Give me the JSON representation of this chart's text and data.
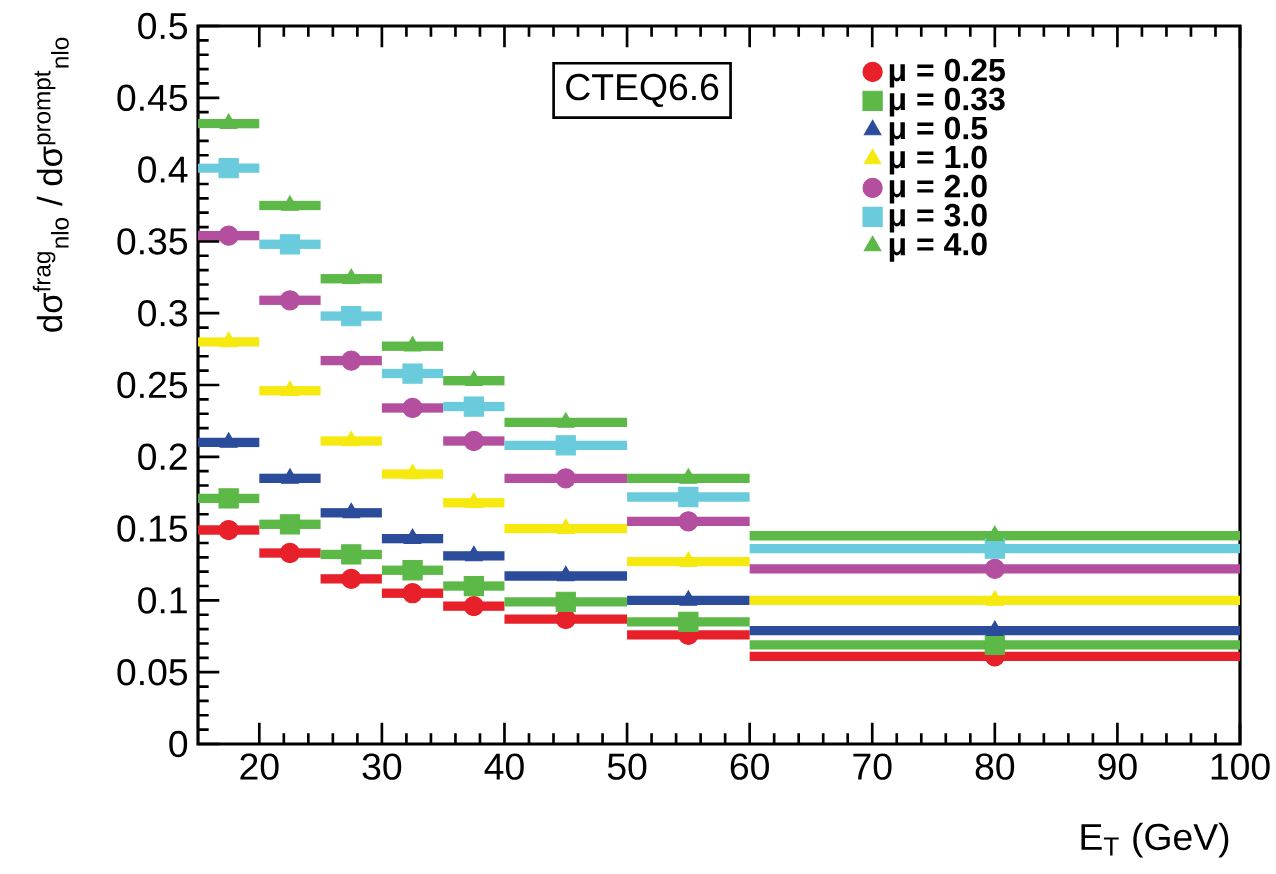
{
  "chart_data": {
    "type": "scatter",
    "x": [
      17.5,
      22.5,
      27.5,
      32.5,
      37.5,
      45,
      55,
      80
    ],
    "xlabel": "E$_{T}$ (GeV)",
    "ylabel": "dσ$^{frag}$$_{nlo}$ / dσ$^{prompt}$$_{nlo}$",
    "annotations": [
      "CTEQ6.6"
    ],
    "xlim": [
      15,
      100
    ],
    "ylim": [
      0,
      0.5
    ],
    "xticks": [
      20,
      30,
      40,
      50,
      60,
      70,
      80,
      90,
      100
    ],
    "yticks": [
      0,
      0.05,
      0.1,
      0.15,
      0.2,
      0.25,
      0.3,
      0.35,
      0.4,
      0.45,
      0.5
    ],
    "legend": "top right",
    "grid": false,
    "series": [
      {
        "name": "μ = 0.25",
        "color": "#e8202a",
        "marker": "circle",
        "values": [
          0.149,
          0.133,
          0.115,
          0.105,
          0.096,
          0.087,
          0.076,
          0.061
        ],
        "xerrors": [
          2.5,
          2.5,
          2.5,
          2.5,
          2.5,
          5,
          5,
          20
        ]
      },
      {
        "name": "μ = 0.33",
        "color": "#5cb847",
        "marker": "square",
        "values": [
          0.171,
          0.153,
          0.132,
          0.121,
          0.11,
          0.099,
          0.085,
          0.069
        ],
        "xerrors": [
          2.5,
          2.5,
          2.5,
          2.5,
          2.5,
          5,
          5,
          20
        ]
      },
      {
        "name": "μ = 0.5",
        "color": "#2b4c9b",
        "marker": "triangle",
        "values": [
          0.21,
          0.185,
          0.161,
          0.143,
          0.131,
          0.117,
          0.1,
          0.079
        ],
        "xerrors": [
          2.5,
          2.5,
          2.5,
          2.5,
          2.5,
          5,
          5,
          20
        ]
      },
      {
        "name": "μ = 1.0",
        "color": "#f5e90f",
        "marker": "triangle",
        "values": [
          0.28,
          0.246,
          0.211,
          0.188,
          0.168,
          0.15,
          0.127,
          0.1
        ],
        "xerrors": [
          2.5,
          2.5,
          2.5,
          2.5,
          2.5,
          5,
          5,
          20
        ]
      },
      {
        "name": "μ = 2.0",
        "color": "#b44fa0",
        "marker": "circle",
        "values": [
          0.354,
          0.309,
          0.267,
          0.234,
          0.211,
          0.185,
          0.155,
          0.122
        ],
        "xerrors": [
          2.5,
          2.5,
          2.5,
          2.5,
          2.5,
          5,
          5,
          20
        ]
      },
      {
        "name": "μ = 3.0",
        "color": "#6acbdc",
        "marker": "square",
        "values": [
          0.401,
          0.348,
          0.298,
          0.258,
          0.235,
          0.208,
          0.172,
          0.136
        ],
        "xerrors": [
          2.5,
          2.5,
          2.5,
          2.5,
          2.5,
          5,
          5,
          20
        ]
      },
      {
        "name": "μ = 4.0",
        "color": "#5cb847",
        "marker": "triangle",
        "values": [
          0.432,
          0.375,
          0.324,
          0.277,
          0.253,
          0.224,
          0.185,
          0.145
        ],
        "xerrors": [
          2.5,
          2.5,
          2.5,
          2.5,
          2.5,
          5,
          5,
          20
        ]
      }
    ]
  }
}
